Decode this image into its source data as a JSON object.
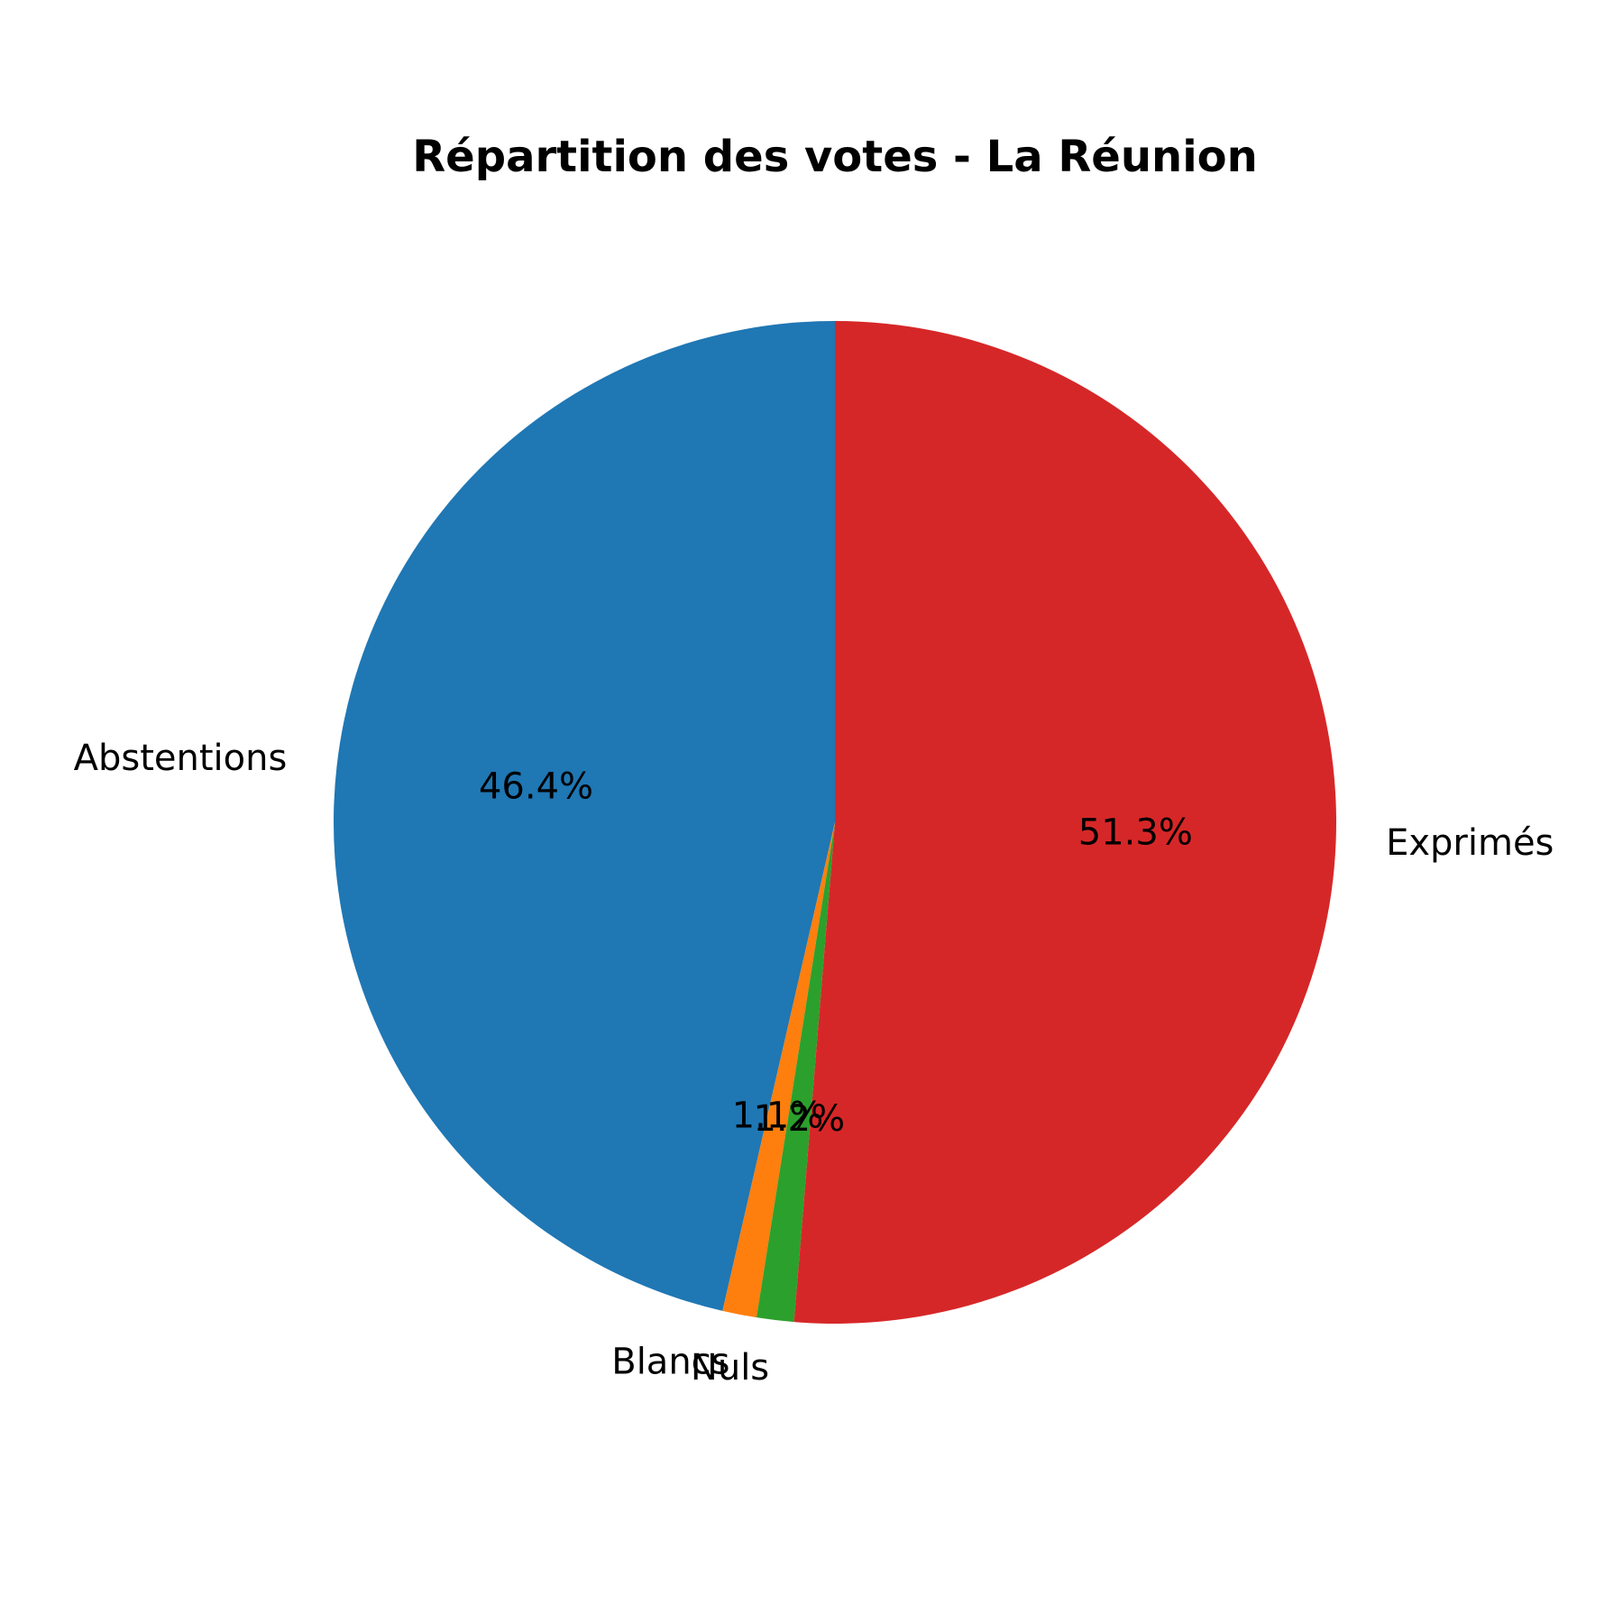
{
  "chart_data": {
    "type": "pie",
    "title": "Répartition des votes - La Réunion",
    "start_angle_deg": 90,
    "direction": "counterclockwise",
    "slices": [
      {
        "label": "Abstentions",
        "value": 46.4,
        "pct_label": "46.4%",
        "color": "#1f77b4"
      },
      {
        "label": "Blancs",
        "value": 1.1,
        "pct_label": "1.1%",
        "color": "#ff7f0e"
      },
      {
        "label": "Nuls",
        "value": 1.2,
        "pct_label": "1.2%",
        "color": "#2ca02c"
      },
      {
        "label": "Exprimés",
        "value": 51.3,
        "pct_label": "51.3%",
        "color": "#d62728"
      }
    ]
  }
}
